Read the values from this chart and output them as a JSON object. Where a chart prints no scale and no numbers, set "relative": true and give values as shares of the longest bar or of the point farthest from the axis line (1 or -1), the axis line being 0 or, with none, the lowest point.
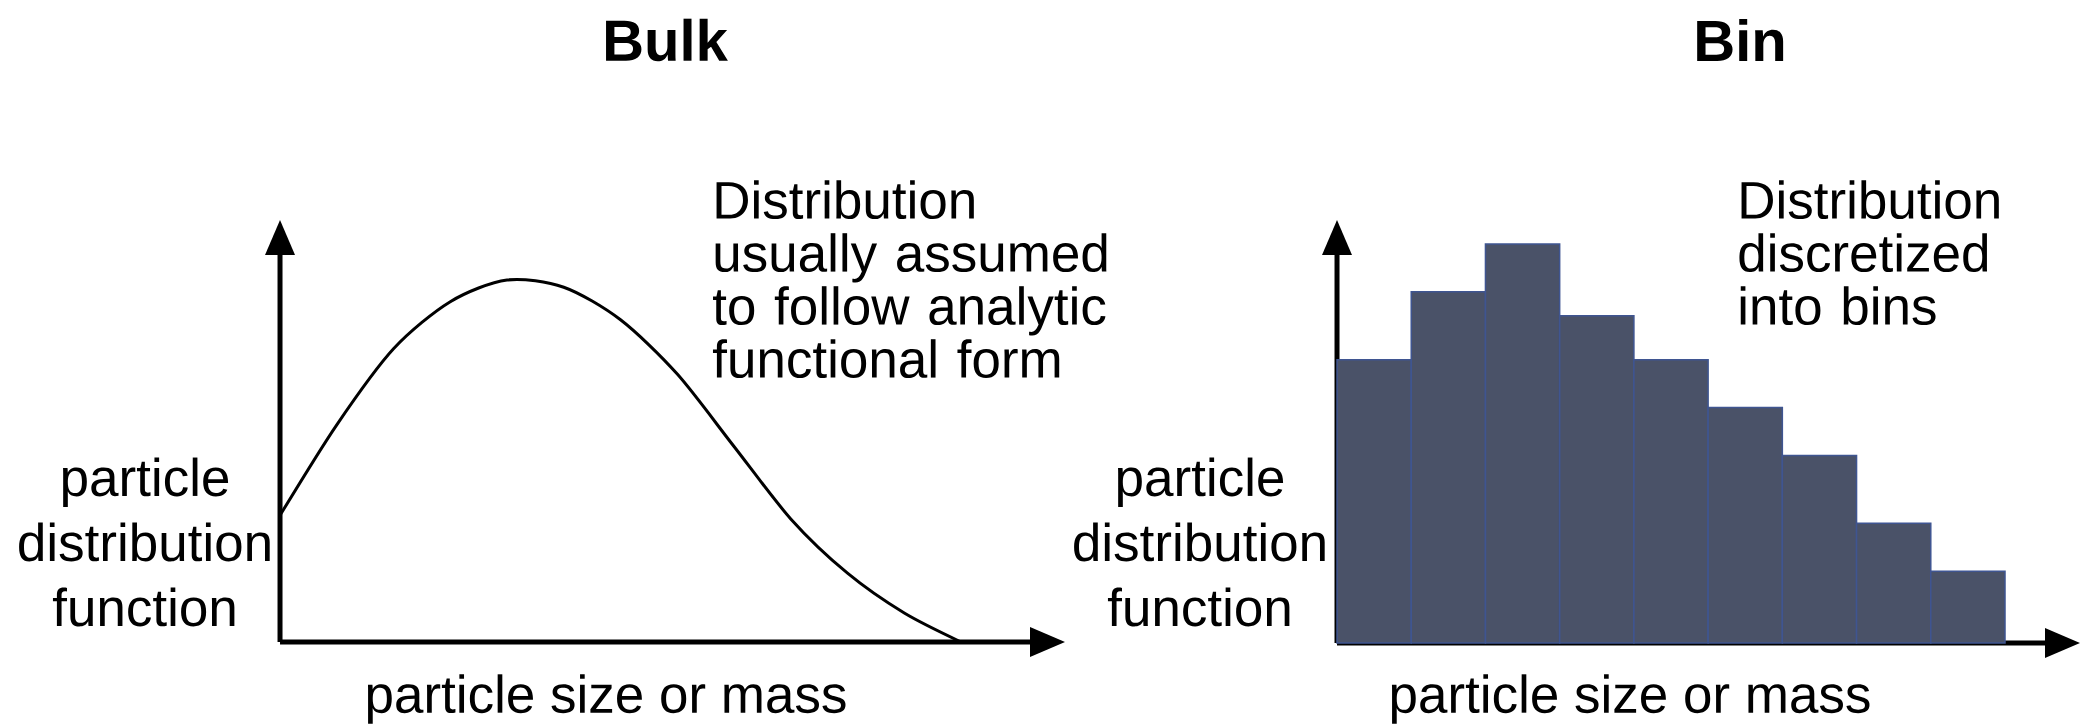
{
  "chart_data": [
    {
      "type": "line",
      "title": "Bulk",
      "xlabel": "particle size or mass",
      "ylabel": "particle distribution function",
      "annotations": [
        "Distribution usually assumed to follow analytic functional form"
      ],
      "categories": [
        null,
        null,
        null,
        null,
        null,
        null,
        null,
        null,
        null,
        null,
        null,
        null,
        null
      ],
      "values": [
        0.35,
        0.6,
        0.81,
        0.94,
        1.0,
        0.98,
        0.89,
        0.74,
        0.54,
        0.34,
        0.19,
        0.08,
        0
      ],
      "color": "#000000",
      "relative": true
    },
    {
      "type": "bar",
      "title": "Bin",
      "xlabel": "particle size or mass",
      "ylabel": "particle distribution function",
      "annotations": [
        "Distribution discretized into bins"
      ],
      "categories": [
        null,
        null,
        null,
        null,
        null,
        null,
        null,
        null,
        null
      ],
      "values": [
        0.71,
        0.88,
        1.0,
        0.82,
        0.71,
        0.59,
        0.47,
        0.3,
        0.18
      ],
      "color": "#4a5268",
      "relative": true
    }
  ]
}
